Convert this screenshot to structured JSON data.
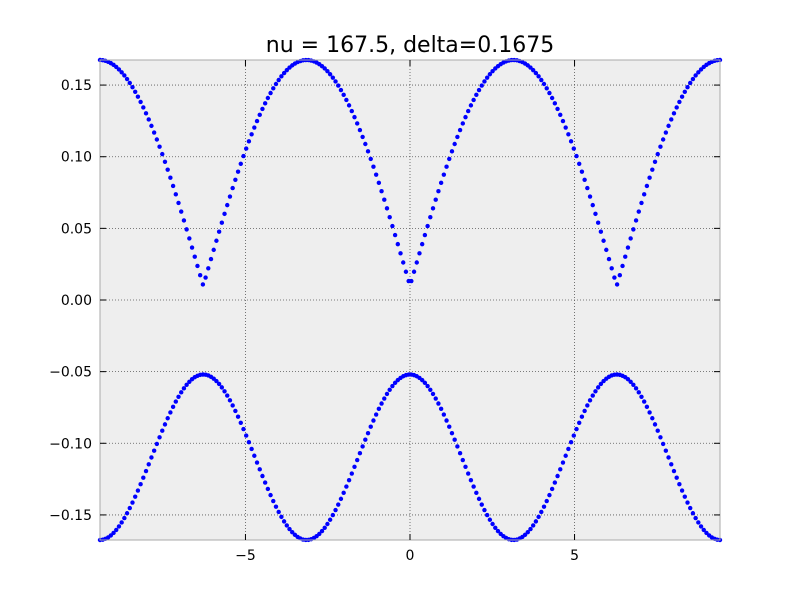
{
  "chart_data": {
    "type": "scatter",
    "title": "nu = 167.5, delta=0.1675",
    "xlabel": "",
    "ylabel": "",
    "xlim": [
      -9.42,
      9.42
    ],
    "ylim": [
      -0.1675,
      0.1675
    ],
    "grid": true,
    "x_ticks": [
      {
        "value": -5,
        "label": "−5"
      },
      {
        "value": 0,
        "label": "0"
      },
      {
        "value": 5,
        "label": "5"
      }
    ],
    "y_ticks": [
      {
        "value": 0.15,
        "label": "0.15"
      },
      {
        "value": 0.1,
        "label": "0.10"
      },
      {
        "value": 0.05,
        "label": "0.05"
      },
      {
        "value": 0.0,
        "label": "0.00"
      },
      {
        "value": -0.05,
        "label": "−0.05"
      },
      {
        "value": -0.1,
        "label": "−0.10"
      },
      {
        "value": -0.15,
        "label": "−0.15"
      }
    ],
    "colors": {
      "points": "#0000ff",
      "plot_background": "#eeeeee",
      "grid": "#555555",
      "axes_edge": "#aaaaaa"
    },
    "series": [
      {
        "x_range": [
          -9.42,
          9.42
        ],
        "points_per_branch": 230,
        "upper_branch_formula": "sqrt(nu_ratio^2 * ((1 + cos(x))/2)^2 + delta^2)",
        "lower_branch_formula": "-sqrt(((1 + cos(x))/2)^2 * nu_ratio^2 + delta^2)",
        "upper_min": 0.01,
        "upper_max": 0.1675,
        "lower_max": -0.052,
        "lower_min": -0.1675
      }
    ]
  }
}
